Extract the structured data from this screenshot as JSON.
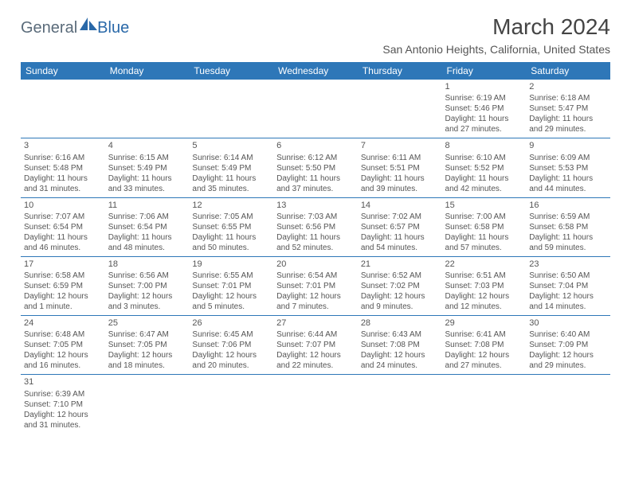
{
  "logo": {
    "text_a": "General",
    "text_b": "Blue"
  },
  "title": "March 2024",
  "location": "San Antonio Heights, California, United States",
  "colors": {
    "header_bg": "#2e77b8",
    "header_text": "#ffffff",
    "border": "#2e77b8",
    "body_text": "#555555",
    "title_text": "#444444",
    "logo_gray": "#5a6b7a",
    "logo_blue": "#2968a8",
    "page_bg": "#ffffff"
  },
  "typography": {
    "title_fontsize": 28,
    "location_fontsize": 14,
    "dayheader_fontsize": 12,
    "cell_fontsize": 10,
    "logo_fontsize": 20
  },
  "day_headers": [
    "Sunday",
    "Monday",
    "Tuesday",
    "Wednesday",
    "Thursday",
    "Friday",
    "Saturday"
  ],
  "weeks": [
    [
      null,
      null,
      null,
      null,
      null,
      {
        "n": "1",
        "sr": "Sunrise: 6:19 AM",
        "ss": "Sunset: 5:46 PM",
        "dl": "Daylight: 11 hours and 27 minutes."
      },
      {
        "n": "2",
        "sr": "Sunrise: 6:18 AM",
        "ss": "Sunset: 5:47 PM",
        "dl": "Daylight: 11 hours and 29 minutes."
      }
    ],
    [
      {
        "n": "3",
        "sr": "Sunrise: 6:16 AM",
        "ss": "Sunset: 5:48 PM",
        "dl": "Daylight: 11 hours and 31 minutes."
      },
      {
        "n": "4",
        "sr": "Sunrise: 6:15 AM",
        "ss": "Sunset: 5:49 PM",
        "dl": "Daylight: 11 hours and 33 minutes."
      },
      {
        "n": "5",
        "sr": "Sunrise: 6:14 AM",
        "ss": "Sunset: 5:49 PM",
        "dl": "Daylight: 11 hours and 35 minutes."
      },
      {
        "n": "6",
        "sr": "Sunrise: 6:12 AM",
        "ss": "Sunset: 5:50 PM",
        "dl": "Daylight: 11 hours and 37 minutes."
      },
      {
        "n": "7",
        "sr": "Sunrise: 6:11 AM",
        "ss": "Sunset: 5:51 PM",
        "dl": "Daylight: 11 hours and 39 minutes."
      },
      {
        "n": "8",
        "sr": "Sunrise: 6:10 AM",
        "ss": "Sunset: 5:52 PM",
        "dl": "Daylight: 11 hours and 42 minutes."
      },
      {
        "n": "9",
        "sr": "Sunrise: 6:09 AM",
        "ss": "Sunset: 5:53 PM",
        "dl": "Daylight: 11 hours and 44 minutes."
      }
    ],
    [
      {
        "n": "10",
        "sr": "Sunrise: 7:07 AM",
        "ss": "Sunset: 6:54 PM",
        "dl": "Daylight: 11 hours and 46 minutes."
      },
      {
        "n": "11",
        "sr": "Sunrise: 7:06 AM",
        "ss": "Sunset: 6:54 PM",
        "dl": "Daylight: 11 hours and 48 minutes."
      },
      {
        "n": "12",
        "sr": "Sunrise: 7:05 AM",
        "ss": "Sunset: 6:55 PM",
        "dl": "Daylight: 11 hours and 50 minutes."
      },
      {
        "n": "13",
        "sr": "Sunrise: 7:03 AM",
        "ss": "Sunset: 6:56 PM",
        "dl": "Daylight: 11 hours and 52 minutes."
      },
      {
        "n": "14",
        "sr": "Sunrise: 7:02 AM",
        "ss": "Sunset: 6:57 PM",
        "dl": "Daylight: 11 hours and 54 minutes."
      },
      {
        "n": "15",
        "sr": "Sunrise: 7:00 AM",
        "ss": "Sunset: 6:58 PM",
        "dl": "Daylight: 11 hours and 57 minutes."
      },
      {
        "n": "16",
        "sr": "Sunrise: 6:59 AM",
        "ss": "Sunset: 6:58 PM",
        "dl": "Daylight: 11 hours and 59 minutes."
      }
    ],
    [
      {
        "n": "17",
        "sr": "Sunrise: 6:58 AM",
        "ss": "Sunset: 6:59 PM",
        "dl": "Daylight: 12 hours and 1 minute."
      },
      {
        "n": "18",
        "sr": "Sunrise: 6:56 AM",
        "ss": "Sunset: 7:00 PM",
        "dl": "Daylight: 12 hours and 3 minutes."
      },
      {
        "n": "19",
        "sr": "Sunrise: 6:55 AM",
        "ss": "Sunset: 7:01 PM",
        "dl": "Daylight: 12 hours and 5 minutes."
      },
      {
        "n": "20",
        "sr": "Sunrise: 6:54 AM",
        "ss": "Sunset: 7:01 PM",
        "dl": "Daylight: 12 hours and 7 minutes."
      },
      {
        "n": "21",
        "sr": "Sunrise: 6:52 AM",
        "ss": "Sunset: 7:02 PM",
        "dl": "Daylight: 12 hours and 9 minutes."
      },
      {
        "n": "22",
        "sr": "Sunrise: 6:51 AM",
        "ss": "Sunset: 7:03 PM",
        "dl": "Daylight: 12 hours and 12 minutes."
      },
      {
        "n": "23",
        "sr": "Sunrise: 6:50 AM",
        "ss": "Sunset: 7:04 PM",
        "dl": "Daylight: 12 hours and 14 minutes."
      }
    ],
    [
      {
        "n": "24",
        "sr": "Sunrise: 6:48 AM",
        "ss": "Sunset: 7:05 PM",
        "dl": "Daylight: 12 hours and 16 minutes."
      },
      {
        "n": "25",
        "sr": "Sunrise: 6:47 AM",
        "ss": "Sunset: 7:05 PM",
        "dl": "Daylight: 12 hours and 18 minutes."
      },
      {
        "n": "26",
        "sr": "Sunrise: 6:45 AM",
        "ss": "Sunset: 7:06 PM",
        "dl": "Daylight: 12 hours and 20 minutes."
      },
      {
        "n": "27",
        "sr": "Sunrise: 6:44 AM",
        "ss": "Sunset: 7:07 PM",
        "dl": "Daylight: 12 hours and 22 minutes."
      },
      {
        "n": "28",
        "sr": "Sunrise: 6:43 AM",
        "ss": "Sunset: 7:08 PM",
        "dl": "Daylight: 12 hours and 24 minutes."
      },
      {
        "n": "29",
        "sr": "Sunrise: 6:41 AM",
        "ss": "Sunset: 7:08 PM",
        "dl": "Daylight: 12 hours and 27 minutes."
      },
      {
        "n": "30",
        "sr": "Sunrise: 6:40 AM",
        "ss": "Sunset: 7:09 PM",
        "dl": "Daylight: 12 hours and 29 minutes."
      }
    ],
    [
      {
        "n": "31",
        "sr": "Sunrise: 6:39 AM",
        "ss": "Sunset: 7:10 PM",
        "dl": "Daylight: 12 hours and 31 minutes."
      },
      null,
      null,
      null,
      null,
      null,
      null
    ]
  ]
}
